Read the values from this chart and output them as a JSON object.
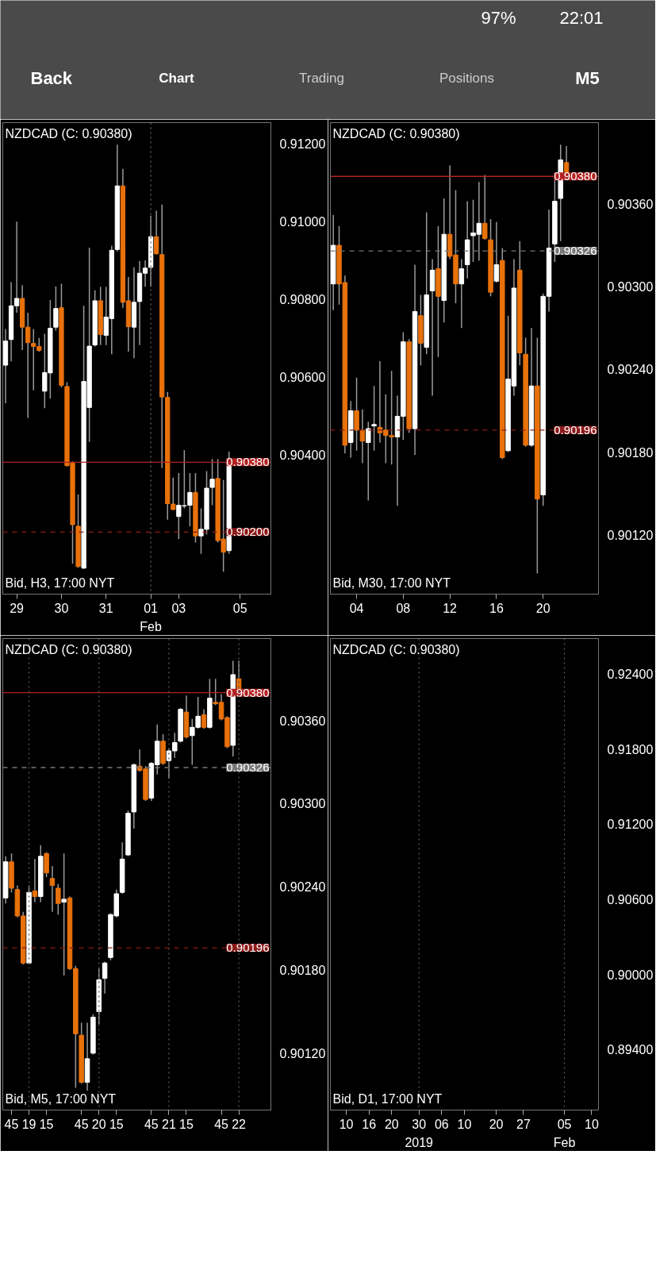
{
  "chart_data": [
    {
      "type": "other",
      "annotations": [
        "97%",
        "22:01",
        "Back",
        "Chart",
        "Trading",
        "Positions",
        "M5"
      ]
    },
    {
      "type": "candlestick",
      "title": "NZDCAD (C: 0.90380)",
      "subtitle": "Bid, H3, 17:00 NYT",
      "categories": [
        null,
        null,
        "29",
        null,
        null,
        null,
        null,
        null,
        null,
        null,
        "30",
        null,
        null,
        null,
        null,
        null,
        null,
        null,
        "31",
        null,
        null,
        null,
        null,
        null,
        null,
        null,
        "01",
        null,
        null,
        null,
        null,
        "03",
        null,
        null,
        null,
        null,
        null,
        null,
        null,
        null,
        null,
        null,
        "05",
        null,
        null,
        null,
        null,
        null
      ],
      "ohlc": [
        [
          0.9063,
          0.90723,
          0.90532,
          0.90692
        ],
        [
          0.90696,
          0.90844,
          0.9064,
          0.90783
        ],
        [
          0.90783,
          0.91,
          0.90765,
          0.90802
        ],
        [
          0.90802,
          0.90836,
          0.90669,
          0.90728
        ],
        [
          0.90728,
          0.90765,
          0.90494,
          0.90688
        ],
        [
          0.90686,
          0.90723,
          0.90565,
          0.90678
        ],
        [
          0.90678,
          0.907,
          0.90665,
          0.90668
        ],
        [
          0.90563,
          0.90711,
          0.90519,
          0.90611
        ],
        [
          0.9061,
          0.90798,
          0.90544,
          0.90725
        ],
        [
          0.90728,
          0.90833,
          0.90719,
          0.90776
        ],
        [
          0.90778,
          0.9084,
          0.90573,
          0.90578
        ],
        [
          0.90575,
          0.90586,
          0.90369,
          0.90371
        ],
        [
          0.90378,
          0.90382,
          0.90119,
          0.90219
        ],
        [
          0.90215,
          0.90297,
          0.90108,
          0.90111
        ],
        [
          0.90107,
          0.90783,
          0.90105,
          0.90588
        ],
        [
          0.90521,
          0.90933,
          0.90432,
          0.90679
        ],
        [
          0.90682,
          0.90823,
          0.90678,
          0.90796
        ],
        [
          0.90796,
          0.90832,
          0.90682,
          0.90709
        ],
        [
          0.90707,
          0.90832,
          0.90682,
          0.90754
        ],
        [
          0.9075,
          0.90938,
          0.90658,
          0.90926
        ],
        [
          0.90928,
          0.91198,
          0.90923,
          0.91092
        ],
        [
          0.91092,
          0.91136,
          0.90778,
          0.90792
        ],
        [
          0.90796,
          0.90857,
          0.90665,
          0.90729
        ],
        [
          0.90728,
          0.90882,
          0.90648,
          0.90792
        ],
        [
          0.90794,
          0.90898,
          0.90682,
          0.90867
        ],
        [
          0.90867,
          0.909,
          0.90832,
          0.9088
        ],
        [
          0.90882,
          0.91015,
          0.90832,
          0.90961
        ],
        [
          0.90961,
          0.91028,
          0.90915,
          0.90917
        ],
        [
          0.90915,
          0.91044,
          0.90365,
          0.90548
        ],
        [
          0.90547,
          0.90561,
          0.90232,
          0.90273
        ],
        [
          0.90272,
          0.9034,
          0.90257,
          0.90258
        ],
        [
          0.9024,
          0.90352,
          0.90182,
          0.90269
        ],
        [
          0.90267,
          0.90411,
          0.90261,
          0.90268
        ],
        [
          0.90269,
          0.90352,
          0.90215,
          0.90302
        ],
        [
          0.90302,
          0.90352,
          0.90173,
          0.9019
        ],
        [
          0.9019,
          0.90261,
          0.90144,
          0.90207
        ],
        [
          0.90207,
          0.90357,
          0.90194,
          0.90313
        ],
        [
          0.90315,
          0.90388,
          0.90269,
          0.90336
        ],
        [
          0.90338,
          0.90388,
          0.90173,
          0.90178
        ],
        [
          0.90182,
          0.90334,
          0.90098,
          0.90148
        ],
        [
          0.90152,
          0.90407,
          0.90144,
          0.9038
        ],
        null,
        null,
        null,
        null,
        null,
        null,
        null
      ],
      "colors": [
        "#ffffff",
        "#ffffff",
        "#ffffff",
        "#e8710a",
        "#e8710a",
        "#e8710a",
        "#e8710a",
        "#ffffff",
        "#ffffff",
        "#ffffff",
        "#e8710a",
        "#e8710a",
        "#e8710a",
        "#e8710a",
        "#ffffff",
        "#ffffff",
        "#ffffff",
        "#e8710a",
        "#ffffff",
        "#ffffff",
        "#ffffff",
        "#e8710a",
        "#e8710a",
        "#ffffff",
        "#ffffff",
        "#ffffff",
        "#ffffff",
        "#e8710a",
        "#e8710a",
        "#e8710a",
        "#e8710a",
        "#ffffff",
        "#ffffff",
        "#ffffff",
        "#e8710a",
        "#ffffff",
        "#ffffff",
        "#ffffff",
        "#e8710a",
        "#e8710a",
        "#ffffff",
        null,
        null,
        null,
        null,
        null,
        null,
        null
      ],
      "ylim": [
        0.9004,
        0.91255
      ],
      "yticks": [
        {
          "value": 0.904,
          "label": "0.90400"
        },
        {
          "value": 0.906,
          "label": "0.90600"
        },
        {
          "value": 0.908,
          "label": "0.90800"
        },
        {
          "value": 0.91,
          "label": "0.91000"
        },
        {
          "value": 0.912,
          "label": "0.91200"
        }
      ],
      "ref_lines": [
        {
          "axis": "y",
          "value": 0.9038,
          "label": "0.90380",
          "color": "#b22222",
          "line_style": "solid"
        },
        {
          "axis": "y",
          "value": 0.902,
          "label": "0.90200",
          "color": "#8b1a1a",
          "line_style": "dashed"
        },
        {
          "axis": "x",
          "value": "01",
          "label": "Feb",
          "color": "#666666",
          "line_style": "dotted"
        }
      ]
    },
    {
      "type": "candlestick",
      "title": "NZDCAD (C: 0.90380)",
      "subtitle": "Bid, M30, 17:00 NYT",
      "categories": [
        null,
        null,
        null,
        null,
        "04",
        null,
        null,
        null,
        null,
        null,
        null,
        null,
        "08",
        null,
        null,
        null,
        null,
        null,
        null,
        null,
        "12",
        null,
        null,
        null,
        null,
        null,
        null,
        null,
        "16",
        null,
        null,
        null,
        null,
        null,
        null,
        null,
        "20",
        null,
        null,
        null,
        null,
        null,
        null,
        null,
        null,
        null
      ],
      "ohlc": [
        [
          0.90302,
          0.90352,
          0.90283,
          0.9033
        ],
        [
          0.9033,
          0.90344,
          0.90287,
          0.90302
        ],
        [
          0.90303,
          0.90308,
          0.90179,
          0.90185
        ],
        [
          0.90187,
          0.90217,
          0.90176,
          0.9021
        ],
        [
          0.9021,
          0.90234,
          0.90181,
          0.90196
        ],
        [
          0.90196,
          0.90211,
          0.90172,
          0.90188
        ],
        [
          0.90187,
          0.90202,
          0.90145,
          0.90197
        ],
        [
          0.90199,
          0.90228,
          0.90181,
          0.902
        ],
        [
          0.90198,
          0.90246,
          0.90187,
          0.90194
        ],
        [
          0.90196,
          0.90222,
          0.90172,
          0.90192
        ],
        [
          0.90192,
          0.90239,
          0.90171,
          0.90191
        ],
        [
          0.90191,
          0.90221,
          0.90141,
          0.90206
        ],
        [
          0.90206,
          0.90267,
          0.90189,
          0.9026
        ],
        [
          0.9026,
          0.90262,
          0.90194,
          0.90197
        ],
        [
          0.90197,
          0.90316,
          0.90178,
          0.90282
        ],
        [
          0.90279,
          0.90294,
          0.90243,
          0.90259
        ],
        [
          0.90256,
          0.90354,
          0.90251,
          0.90294
        ],
        [
          0.90297,
          0.9032,
          0.90221,
          0.90312
        ],
        [
          0.90313,
          0.90344,
          0.90249,
          0.90293
        ],
        [
          0.9029,
          0.90364,
          0.90274,
          0.90338
        ],
        [
          0.90338,
          0.90388,
          0.9032,
          0.90322
        ],
        [
          0.90323,
          0.9037,
          0.90288,
          0.90302
        ],
        [
          0.90302,
          0.9032,
          0.9027,
          0.90313
        ],
        [
          0.90316,
          0.90362,
          0.90306,
          0.90334
        ],
        [
          0.90337,
          0.90363,
          0.90318,
          0.90339
        ],
        [
          0.90338,
          0.90376,
          0.90319,
          0.90346
        ],
        [
          0.90346,
          0.90381,
          0.90334,
          0.90335
        ],
        [
          0.90334,
          0.90349,
          0.90293,
          0.90296
        ],
        [
          0.90304,
          0.90347,
          0.90303,
          0.90316
        ],
        [
          0.90319,
          0.90328,
          0.90175,
          0.90176
        ],
        [
          0.90181,
          0.90279,
          0.9018,
          0.90233
        ],
        [
          0.90228,
          0.9032,
          0.90221,
          0.90299
        ],
        [
          0.90312,
          0.90333,
          0.90243,
          0.90252
        ],
        [
          0.90251,
          0.90263,
          0.90184,
          0.90185
        ],
        [
          0.90185,
          0.9027,
          0.90184,
          0.90228
        ],
        [
          0.90228,
          0.90263,
          0.90092,
          0.90146
        ],
        [
          0.90149,
          0.90295,
          0.90141,
          0.90293
        ],
        [
          0.90293,
          0.90356,
          0.90282,
          0.90328
        ],
        [
          0.90331,
          0.90378,
          0.90318,
          0.90362
        ],
        [
          0.90364,
          0.90403,
          0.90333,
          0.90392
        ],
        [
          0.9039,
          0.90402,
          0.90379,
          0.9038
        ],
        null,
        null,
        null,
        null,
        null
      ],
      "colors": [
        "#ffffff",
        "#e8710a",
        "#e8710a",
        "#ffffff",
        "#e8710a",
        "#e8710a",
        "#ffffff",
        "#ffffff",
        "#e8710a",
        "#e8710a",
        "#e8710a",
        "#ffffff",
        "#ffffff",
        "#e8710a",
        "#ffffff",
        "#e8710a",
        "#ffffff",
        "#ffffff",
        "#e8710a",
        "#ffffff",
        "#e8710a",
        "#e8710a",
        "#ffffff",
        "#ffffff",
        "#ffffff",
        "#ffffff",
        "#e8710a",
        "#e8710a",
        "#ffffff",
        "#e8710a",
        "#ffffff",
        "#ffffff",
        "#e8710a",
        "#e8710a",
        "#ffffff",
        "#e8710a",
        "#ffffff",
        "#ffffff",
        "#ffffff",
        "#ffffff",
        "#e8710a",
        null,
        null,
        null,
        null,
        null
      ],
      "ylim": [
        0.90077,
        0.90419
      ],
      "yticks": [
        {
          "value": 0.9012,
          "label": "0.90120"
        },
        {
          "value": 0.9018,
          "label": "0.90180"
        },
        {
          "value": 0.9024,
          "label": "0.90240"
        },
        {
          "value": 0.903,
          "label": "0.90300"
        },
        {
          "value": 0.9036,
          "label": "0.90360"
        }
      ],
      "ref_lines": [
        {
          "axis": "y",
          "value": 0.9038,
          "label": "0.90380",
          "color": "#b22222",
          "line_style": "solid"
        },
        {
          "axis": "y",
          "value": 0.90326,
          "label": "0.90326",
          "color": "#777777",
          "line_style": "dashed"
        },
        {
          "axis": "y",
          "value": 0.90196,
          "label": "0.90196",
          "color": "#8b1a1a",
          "line_style": "dashed"
        }
      ]
    },
    {
      "type": "candlestick",
      "title": "NZDCAD (C: 0.90380)",
      "subtitle": "Bid, M5, 17:00 NYT",
      "categories": [
        null,
        "45",
        null,
        null,
        "19",
        null,
        null,
        "15",
        null,
        null,
        null,
        null,
        null,
        "45",
        null,
        null,
        "20",
        null,
        null,
        "15",
        null,
        null,
        null,
        null,
        null,
        "45",
        null,
        null,
        "21",
        null,
        null,
        "15",
        null,
        null,
        null,
        null,
        null,
        "45",
        null,
        null,
        "22",
        null,
        null,
        null,
        null,
        null
      ],
      "ohlc": [
        [
          0.90232,
          0.90262,
          0.90228,
          0.90258
        ],
        [
          0.90258,
          0.90264,
          0.90236,
          0.90239
        ],
        [
          0.90238,
          0.90241,
          0.90218,
          0.90219
        ],
        [
          0.90219,
          0.90222,
          0.90184,
          0.90185
        ],
        [
          0.90185,
          0.90241,
          0.90184,
          0.90236
        ],
        [
          0.90237,
          0.9026,
          0.90229,
          0.90233
        ],
        [
          0.90233,
          0.9027,
          0.90229,
          0.90262
        ],
        [
          0.90264,
          0.90265,
          0.90247,
          0.9025
        ],
        [
          0.90246,
          0.90255,
          0.90222,
          0.90241
        ],
        [
          0.90239,
          0.90242,
          0.9022,
          0.90228
        ],
        [
          0.90229,
          0.90264,
          0.90176,
          0.90231
        ],
        [
          0.90232,
          0.90233,
          0.9018,
          0.90181
        ],
        [
          0.90181,
          0.90183,
          0.90095,
          0.90134
        ],
        [
          0.90133,
          0.90142,
          0.90098,
          0.90099
        ],
        [
          0.90099,
          0.90142,
          0.90093,
          0.90116
        ],
        [
          0.9012,
          0.90148,
          0.90119,
          0.90146
        ],
        [
          0.9015,
          0.90181,
          0.90141,
          0.90173
        ],
        [
          0.90174,
          0.90186,
          0.90163,
          0.90185
        ],
        [
          0.90189,
          0.90221,
          0.90187,
          0.9022
        ],
        [
          0.90219,
          0.90238,
          0.90218,
          0.90235
        ],
        [
          0.90236,
          0.90272,
          0.90235,
          0.9026
        ],
        [
          0.90263,
          0.90295,
          0.90262,
          0.90293
        ],
        [
          0.90294,
          0.90329,
          0.90282,
          0.90328
        ],
        [
          0.90327,
          0.90339,
          0.90323,
          0.90324
        ],
        [
          0.90325,
          0.90327,
          0.90302,
          0.90303
        ],
        [
          0.90304,
          0.9033,
          0.90302,
          0.90329
        ],
        [
          0.90328,
          0.90357,
          0.90321,
          0.90345
        ],
        [
          0.90345,
          0.9035,
          0.90328,
          0.90329
        ],
        [
          0.90331,
          0.9034,
          0.90318,
          0.90338
        ],
        [
          0.90338,
          0.90351,
          0.90333,
          0.90344
        ],
        [
          0.90345,
          0.90369,
          0.90344,
          0.90368
        ],
        [
          0.90366,
          0.90378,
          0.90347,
          0.90348
        ],
        [
          0.90349,
          0.90361,
          0.90328,
          0.90355
        ],
        [
          0.90355,
          0.90377,
          0.90354,
          0.90363
        ],
        [
          0.90364,
          0.90368,
          0.90354,
          0.90355
        ],
        [
          0.90355,
          0.9039,
          0.90354,
          0.90376
        ],
        [
          0.90373,
          0.9039,
          0.90371,
          0.90372
        ],
        [
          0.90373,
          0.90379,
          0.9036,
          0.90361
        ],
        [
          0.90362,
          0.90363,
          0.9034,
          0.90341
        ],
        [
          0.90342,
          0.90403,
          0.90334,
          0.90393
        ],
        [
          0.9039,
          0.90403,
          0.90379,
          0.9038
        ],
        null,
        null,
        null,
        null,
        null
      ],
      "colors": [
        "#ffffff",
        "#e8710a",
        "#e8710a",
        "#e8710a",
        "#ffffff",
        "#e8710a",
        "#ffffff",
        "#e8710a",
        "#e8710a",
        "#e8710a",
        "#ffffff",
        "#e8710a",
        "#e8710a",
        "#e8710a",
        "#ffffff",
        "#ffffff",
        "#ffffff",
        "#ffffff",
        "#ffffff",
        "#ffffff",
        "#ffffff",
        "#ffffff",
        "#ffffff",
        "#e8710a",
        "#e8710a",
        "#ffffff",
        "#ffffff",
        "#e8710a",
        "#ffffff",
        "#ffffff",
        "#ffffff",
        "#e8710a",
        "#ffffff",
        "#ffffff",
        "#e8710a",
        "#ffffff",
        "#e8710a",
        "#e8710a",
        "#e8710a",
        "#ffffff",
        "#e8710a",
        null,
        null,
        null,
        null,
        null
      ],
      "ylim": [
        0.90079,
        0.90419
      ],
      "yticks": [
        {
          "value": 0.9012,
          "label": "0.90120"
        },
        {
          "value": 0.9018,
          "label": "0.90180"
        },
        {
          "value": 0.9024,
          "label": "0.90240"
        },
        {
          "value": 0.903,
          "label": "0.90300"
        },
        {
          "value": 0.9036,
          "label": "0.90360"
        }
      ],
      "ref_lines": [
        {
          "axis": "y",
          "value": 0.9038,
          "label": "0.90380",
          "color": "#b22222",
          "line_style": "solid"
        },
        {
          "axis": "y",
          "value": 0.90326,
          "label": "0.90326",
          "color": "#777777",
          "line_style": "dashed"
        },
        {
          "axis": "y",
          "value": 0.90196,
          "label": "0.90196",
          "color": "#8b1a1a",
          "line_style": "dashed"
        },
        {
          "axis": "x",
          "value": "19",
          "color": "#555555",
          "line_style": "dotted"
        },
        {
          "axis": "x",
          "value": "20",
          "color": "#555555",
          "line_style": "dotted"
        },
        {
          "axis": "x",
          "value": "21",
          "color": "#555555",
          "line_style": "dotted"
        },
        {
          "axis": "x",
          "value": "22",
          "color": "#555555",
          "line_style": "dotted"
        }
      ]
    },
    {
      "type": "candlestick",
      "title": "NZDCAD (C: 0.90380)",
      "subtitle": "Bid, D1, 17:00 NYT",
      "categories": [
        null,
        null,
        null,
        "10",
        null,
        null,
        null,
        null,
        "16",
        null,
        null,
        null,
        null,
        "20",
        null,
        null,
        null,
        null,
        null,
        "30",
        null,
        null,
        null,
        null,
        "06",
        null,
        null,
        null,
        null,
        "10",
        null,
        null,
        null,
        null,
        null,
        null,
        "20",
        null,
        null,
        null,
        null,
        null,
        "27",
        null,
        null,
        null,
        null,
        null,
        null,
        null,
        null,
        "05",
        null,
        null,
        null,
        null,
        null,
        "10",
        null
      ],
      "ylim": [
        0.88917,
        0.92682
      ],
      "yticks": [
        {
          "value": 0.894,
          "label": "0.89400"
        },
        {
          "value": 0.9,
          "label": "0.90000"
        },
        {
          "value": 0.906,
          "label": "0.90600"
        },
        {
          "value": 0.912,
          "label": "0.91200"
        },
        {
          "value": 0.918,
          "label": "0.91800"
        },
        {
          "value": 0.924,
          "label": "0.92400"
        }
      ],
      "ref_lines": [
        {
          "axis": "x",
          "value": "30",
          "label": "2019",
          "color": "#555555",
          "line_style": "dotted"
        },
        {
          "axis": "x",
          "value": "05",
          "label": "Feb",
          "color": "#555555",
          "line_style": "dotted"
        }
      ]
    }
  ]
}
